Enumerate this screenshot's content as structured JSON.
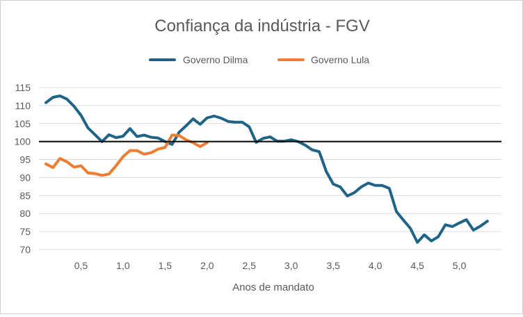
{
  "chart_data": {
    "type": "line",
    "title": "Confiança da indústria - FGV",
    "xlabel": "Anos de mandato",
    "ylabel": "",
    "ylim": [
      70,
      115
    ],
    "xlim": [
      0,
      5.5
    ],
    "grid": true,
    "legend_position": "top-center",
    "y_ticks": [
      70,
      75,
      80,
      85,
      90,
      95,
      100,
      105,
      110,
      115
    ],
    "x_ticks": [
      0.5,
      1.0,
      1.5,
      2.0,
      2.5,
      3.0,
      3.5,
      4.0,
      4.5,
      5.0
    ],
    "x_tick_labels": [
      "0,5",
      "1,0",
      "1,5",
      "2,0",
      "2,5",
      "3,0",
      "3,5",
      "4,0",
      "4,5",
      "5,0"
    ],
    "reference_line": {
      "y": 100,
      "color": "#000000"
    },
    "series": [
      {
        "name": "Governo Dilma",
        "color": "#1F6487",
        "x": [
          0.083,
          0.167,
          0.25,
          0.333,
          0.417,
          0.5,
          0.583,
          0.667,
          0.75,
          0.833,
          0.917,
          1.0,
          1.083,
          1.167,
          1.25,
          1.333,
          1.417,
          1.5,
          1.583,
          1.667,
          1.75,
          1.833,
          1.917,
          2.0,
          2.083,
          2.167,
          2.25,
          2.333,
          2.417,
          2.5,
          2.583,
          2.667,
          2.75,
          2.833,
          2.917,
          3.0,
          3.083,
          3.167,
          3.25,
          3.333,
          3.417,
          3.5,
          3.583,
          3.667,
          3.75,
          3.833,
          3.917,
          4.0,
          4.083,
          4.167,
          4.25,
          4.333,
          4.417,
          4.5,
          4.583,
          4.667,
          4.75,
          4.833,
          4.917,
          5.0,
          5.083,
          5.167,
          5.25,
          5.333
        ],
        "values": [
          110.8,
          112.3,
          112.7,
          111.8,
          109.8,
          107.3,
          103.8,
          101.9,
          100.0,
          101.9,
          101.1,
          101.5,
          103.6,
          101.4,
          101.8,
          101.2,
          101.0,
          100.0,
          99.2,
          102.6,
          104.4,
          106.3,
          104.8,
          106.6,
          107.1,
          106.5,
          105.6,
          105.4,
          105.4,
          104.1,
          99.8,
          100.9,
          101.3,
          100.1,
          100.1,
          100.5,
          100.0,
          99.0,
          97.7,
          97.2,
          91.7,
          88.2,
          87.4,
          84.9,
          85.8,
          87.4,
          88.5,
          87.8,
          87.8,
          87.0,
          80.6,
          78.2,
          75.9,
          72.0,
          74.1,
          72.4,
          73.6,
          76.9,
          76.4,
          77.4,
          78.3,
          75.4,
          76.5,
          77.9
        ]
      },
      {
        "name": "Governo Lula",
        "color": "#ED7D31",
        "x": [
          0.083,
          0.167,
          0.25,
          0.333,
          0.417,
          0.5,
          0.583,
          0.667,
          0.75,
          0.833,
          0.917,
          1.0,
          1.083,
          1.167,
          1.25,
          1.333,
          1.417,
          1.5,
          1.583,
          1.667,
          1.75,
          1.833,
          1.917,
          2.0
        ],
        "values": [
          93.8,
          92.8,
          95.3,
          94.4,
          92.9,
          93.3,
          91.3,
          91.1,
          90.6,
          91.0,
          93.3,
          95.8,
          97.5,
          97.5,
          96.5,
          96.9,
          97.9,
          98.4,
          101.8,
          101.7,
          100.5,
          99.7,
          98.6,
          99.7
        ]
      }
    ]
  }
}
